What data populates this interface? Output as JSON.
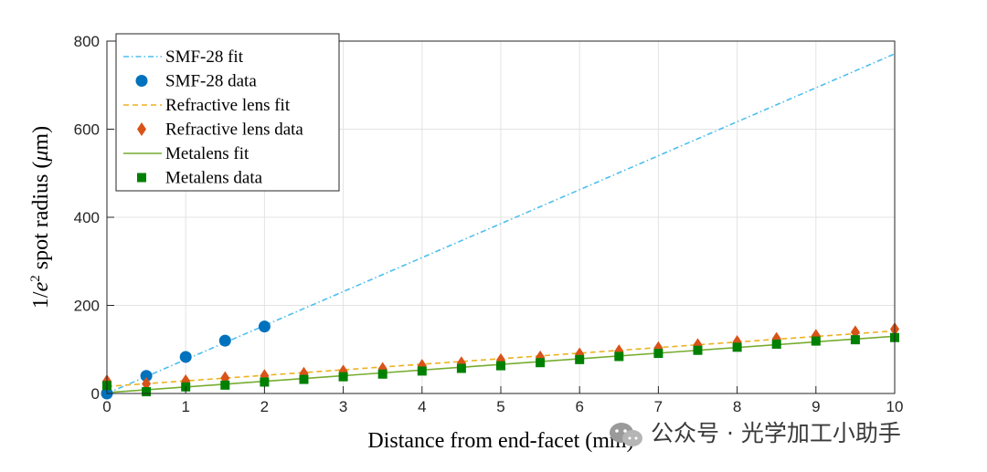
{
  "chart_data": {
    "type": "line",
    "xlabel": "Distance from end-facet (mm)",
    "ylabel_prefix": "1/",
    "ylabel_e": "e",
    "ylabel_exp": "2",
    "ylabel_mid": " spot radius (",
    "ylabel_mu": "μ",
    "ylabel_suffix": "m)",
    "xlim": [
      0,
      10
    ],
    "ylim": [
      0,
      800
    ],
    "xticks": [
      "0",
      "1",
      "2",
      "3",
      "4",
      "5",
      "6",
      "7",
      "8",
      "9",
      "10"
    ],
    "yticks": [
      "0",
      "200",
      "400",
      "600",
      "800"
    ],
    "grid": true,
    "legend_position": "top-left",
    "series": [
      {
        "name": "SMF-28 fit",
        "kind": "line",
        "style": "dashdot",
        "color": "#4DBEEE",
        "x": [
          0,
          10
        ],
        "y": [
          0,
          771
        ]
      },
      {
        "name": "SMF-28 data",
        "kind": "scatter",
        "marker": "circle",
        "color": "#0072BD",
        "x": [
          0,
          0.5,
          1,
          1.5,
          2
        ],
        "y": [
          0,
          40,
          83,
          120,
          152
        ]
      },
      {
        "name": "Refractive lens fit",
        "kind": "line",
        "style": "dashed",
        "color": "#EDB120",
        "x": [
          0,
          10
        ],
        "y": [
          16,
          142
        ]
      },
      {
        "name": "Refractive lens data",
        "kind": "scatter",
        "marker": "diamond",
        "color": "#D95319",
        "x": [
          0,
          0.5,
          1,
          1.5,
          2,
          2.5,
          3,
          3.5,
          4,
          4.5,
          5,
          5.5,
          6,
          6.5,
          7,
          7.5,
          8,
          8.5,
          9,
          9.5,
          10
        ],
        "y": [
          28,
          22,
          28,
          35,
          40,
          45,
          50,
          56,
          63,
          69,
          76,
          82,
          89,
          96,
          103,
          110,
          117,
          124,
          131,
          139,
          146
        ]
      },
      {
        "name": "Metalens fit",
        "kind": "line",
        "style": "solid",
        "color": "#77AC30",
        "x": [
          0,
          10
        ],
        "y": [
          2,
          130
        ]
      },
      {
        "name": "Metalens data",
        "kind": "scatter",
        "marker": "square",
        "color": "#008000",
        "x": [
          0,
          0.5,
          1,
          1.5,
          2,
          2.5,
          3,
          3.5,
          4,
          4.5,
          5,
          5.5,
          6,
          6.5,
          7,
          7.5,
          8,
          8.5,
          9,
          9.5,
          10
        ],
        "y": [
          18,
          4,
          15,
          19,
          26,
          32,
          38,
          44,
          51,
          57,
          63,
          70,
          77,
          84,
          91,
          98,
          105,
          112,
          119,
          122,
          127
        ]
      }
    ]
  },
  "watermark": "公众号 · 光学加工小助手",
  "watermark_icon": "wechat-icon"
}
